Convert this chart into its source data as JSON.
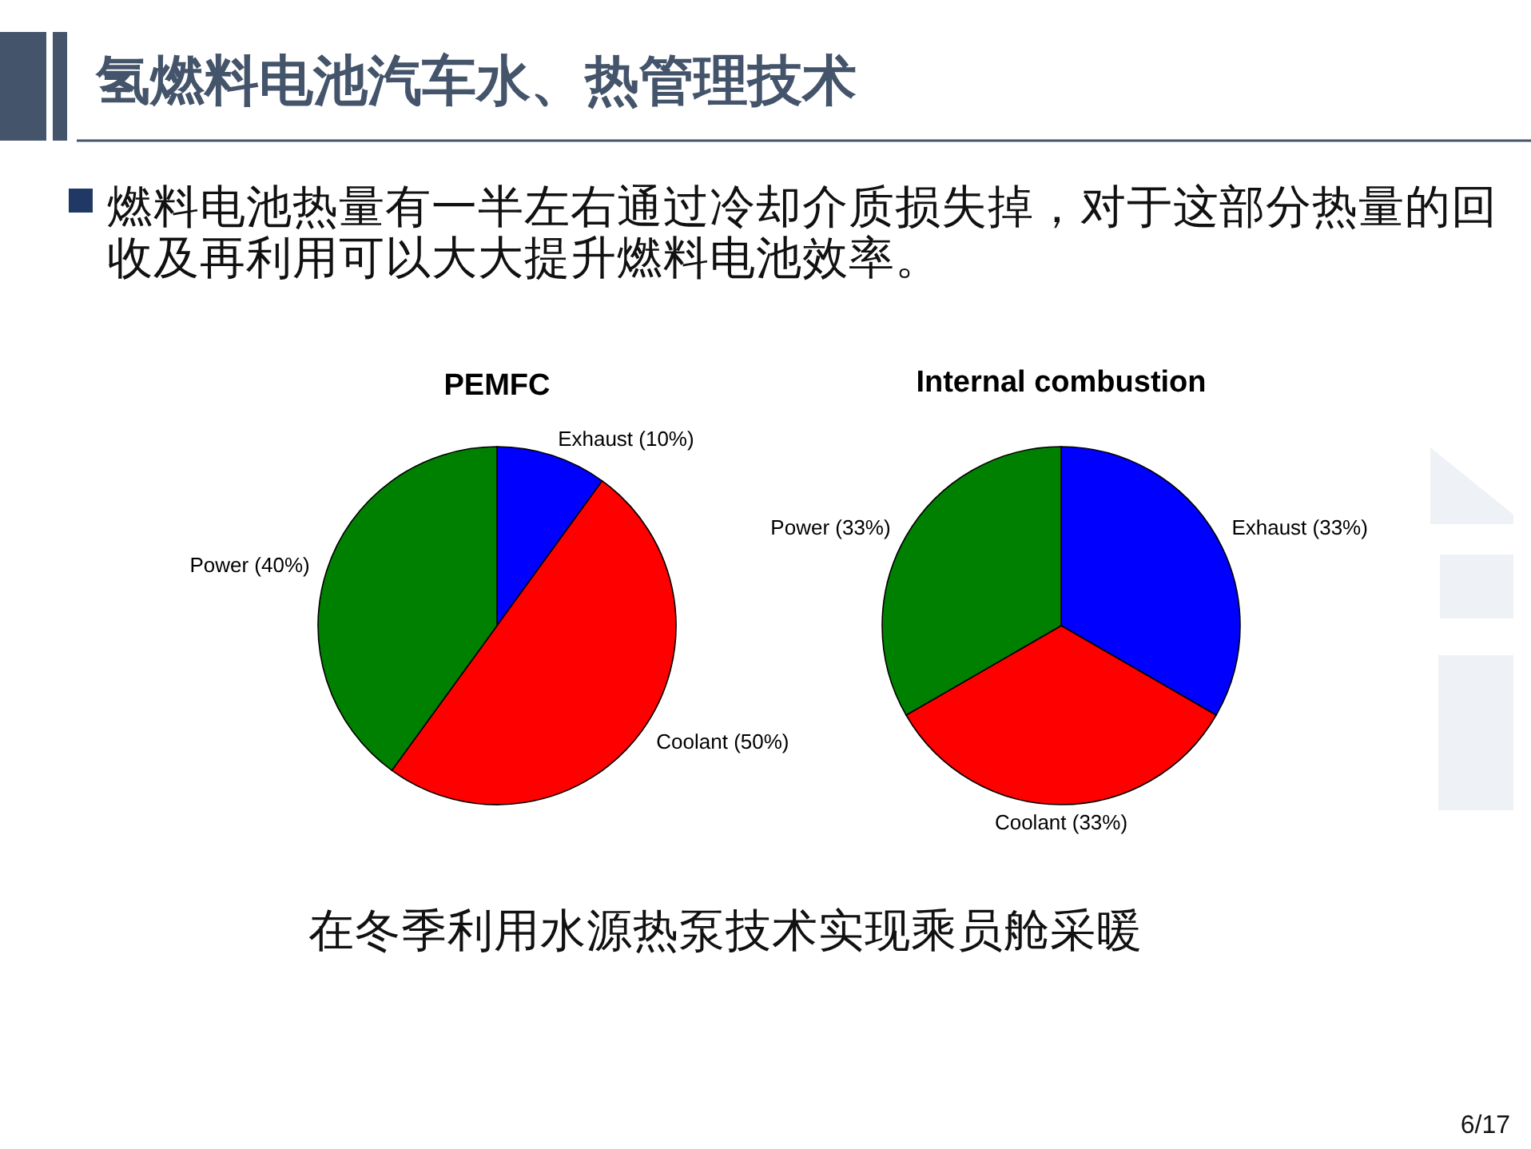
{
  "chart_data": [
    {
      "type": "other",
      "title": "氢燃料电池汽车水、热管理技术",
      "annotations": [
        "燃料电池热量有一半左右通过冷却介质损失掉，对于这部分热量的回收及再利用可以大大提升燃料电池效率。",
        "在冬季利用水源热泵技术实现乘员舱采暖",
        "6/17"
      ]
    },
    {
      "type": "pie",
      "title": "PEMFC",
      "categories": [
        "Exhaust (10%)",
        "Coolant (50%)",
        "Power (40%)"
      ],
      "values": [
        10,
        50,
        40
      ],
      "colors": [
        "#0000ff",
        "#ff0000",
        "#008000"
      ]
    },
    {
      "type": "pie",
      "title": "Internal combustion",
      "categories": [
        "Exhaust (33%)",
        "Coolant (33%)",
        "Power (33%)"
      ],
      "values": [
        33,
        33,
        33
      ],
      "colors": [
        "#0000ff",
        "#ff0000",
        "#008000"
      ]
    }
  ]
}
